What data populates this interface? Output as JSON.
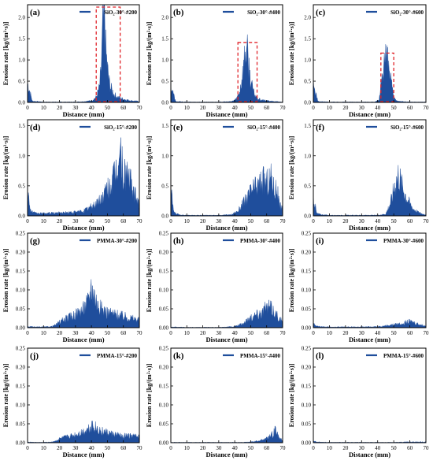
{
  "figure": {
    "xlabel": "Distance (mm)",
    "ylabel": "Erosion rate [kg/(m²·s)]",
    "series_color": "#1f4e9c",
    "highlight_color": "#e0242a"
  },
  "chart_data": [
    {
      "panel": "(a)",
      "type": "area",
      "series": [
        {
          "name": "SiO₂-30°-#200"
        }
      ],
      "xlim": [
        0,
        70
      ],
      "ylim": [
        0,
        2.3
      ],
      "xticks": [
        0,
        10,
        20,
        30,
        40,
        50,
        60,
        70
      ],
      "yticks": [
        "0.0",
        "0.5",
        "1.0",
        "1.5",
        "2.0"
      ],
      "ytick_values": [
        0,
        0.5,
        1.0,
        1.5,
        2.0
      ],
      "highlight": [
        43,
        58
      ],
      "x": [
        0,
        3,
        10,
        20,
        30,
        35,
        40,
        43,
        45,
        46,
        47,
        48,
        48.5,
        49,
        50,
        51,
        52,
        53,
        54,
        55,
        56,
        58,
        60,
        62,
        65,
        68,
        70
      ],
      "y": [
        0.45,
        0.03,
        0.01,
        0.01,
        0.01,
        0.02,
        0.04,
        0.12,
        0.35,
        0.7,
        1.6,
        2.2,
        1.8,
        1.2,
        0.8,
        0.5,
        0.35,
        0.28,
        0.2,
        0.16,
        0.13,
        0.1,
        0.08,
        0.06,
        0.04,
        0.03,
        0.02
      ]
    },
    {
      "panel": "(b)",
      "type": "area",
      "series": [
        {
          "name": "SiO₂-30°-#400"
        }
      ],
      "xlim": [
        0,
        70
      ],
      "ylim": [
        0,
        2.3
      ],
      "xticks": [
        0,
        10,
        20,
        30,
        40,
        50,
        60,
        70
      ],
      "yticks": [
        "0.0",
        "0.5",
        "1.0",
        "1.5",
        "2.0"
      ],
      "ytick_values": [
        0,
        0.5,
        1.0,
        1.5,
        2.0
      ],
      "highlight": [
        42,
        54
      ],
      "x": [
        0,
        3,
        10,
        20,
        30,
        38,
        41,
        43,
        44,
        45,
        46,
        47,
        48,
        49,
        50,
        51,
        52,
        54,
        56,
        60,
        65,
        70
      ],
      "y": [
        0.4,
        0.02,
        0.01,
        0.01,
        0.01,
        0.02,
        0.08,
        0.25,
        0.45,
        0.7,
        1.0,
        1.3,
        1.1,
        0.8,
        0.5,
        0.35,
        0.22,
        0.1,
        0.06,
        0.04,
        0.02,
        0.01
      ]
    },
    {
      "panel": "(c)",
      "type": "area",
      "series": [
        {
          "name": "SiO₂-30°-#600"
        }
      ],
      "xlim": [
        0,
        70
      ],
      "ylim": [
        0,
        2.3
      ],
      "xticks": [
        0,
        10,
        20,
        30,
        40,
        50,
        60,
        70
      ],
      "yticks": [
        "0.0",
        "0.5",
        "1.0",
        "1.5",
        "2.0"
      ],
      "ytick_values": [
        0,
        0.5,
        1.0,
        1.5,
        2.0
      ],
      "highlight": [
        42,
        50
      ],
      "x": [
        0,
        3,
        10,
        20,
        30,
        38,
        41,
        42,
        43,
        44,
        45,
        46,
        47,
        48,
        49,
        50,
        52,
        55,
        60,
        70
      ],
      "y": [
        0.4,
        0.02,
        0.01,
        0.01,
        0.01,
        0.01,
        0.05,
        0.4,
        0.8,
        1.0,
        1.05,
        0.95,
        0.8,
        0.6,
        0.3,
        0.1,
        0.04,
        0.02,
        0.01,
        0.01
      ]
    },
    {
      "panel": "(d)",
      "type": "area",
      "series": [
        {
          "name": "SiO₂-15°-#200"
        }
      ],
      "xlim": [
        0,
        70
      ],
      "ylim": [
        0,
        1.6
      ],
      "xticks": [
        0,
        10,
        20,
        30,
        40,
        50,
        60,
        70
      ],
      "yticks": [
        "0.0",
        "0.5",
        "1.0",
        "1.5"
      ],
      "ytick_values": [
        0,
        0.5,
        1.0,
        1.5
      ],
      "x": [
        0,
        2,
        5,
        10,
        20,
        30,
        35,
        40,
        45,
        48,
        50,
        53,
        55,
        57,
        58,
        59,
        60,
        61,
        62,
        64,
        66,
        68,
        70
      ],
      "y": [
        0.4,
        0.08,
        0.04,
        0.04,
        0.05,
        0.06,
        0.08,
        0.15,
        0.25,
        0.35,
        0.45,
        0.55,
        0.7,
        0.9,
        1.05,
        0.9,
        0.6,
        0.7,
        0.75,
        0.6,
        0.4,
        0.3,
        0.2
      ]
    },
    {
      "panel": "(e)",
      "type": "area",
      "series": [
        {
          "name": "SiO₂-15°-#400"
        }
      ],
      "xlim": [
        0,
        70
      ],
      "ylim": [
        0,
        1.6
      ],
      "xticks": [
        0,
        10,
        20,
        30,
        40,
        50,
        60,
        70
      ],
      "yticks": [
        "0.0",
        "0.5",
        "1.0",
        "1.5"
      ],
      "ytick_values": [
        0,
        0.5,
        1.0,
        1.5
      ],
      "x": [
        0,
        2,
        5,
        10,
        20,
        30,
        38,
        42,
        45,
        48,
        50,
        52,
        55,
        57,
        60,
        62,
        63,
        65,
        66,
        68,
        70
      ],
      "y": [
        0.4,
        0.05,
        0.02,
        0.01,
        0.01,
        0.01,
        0.02,
        0.08,
        0.2,
        0.3,
        0.4,
        0.45,
        0.5,
        0.6,
        0.55,
        0.6,
        0.65,
        0.4,
        0.5,
        0.2,
        0.1
      ]
    },
    {
      "panel": "(f)",
      "type": "area",
      "series": [
        {
          "name": "SiO₂-15°-#600"
        }
      ],
      "xlim": [
        0,
        70
      ],
      "ylim": [
        0,
        1.6
      ],
      "xticks": [
        0,
        10,
        20,
        30,
        40,
        50,
        60,
        70
      ],
      "yticks": [
        "0.0",
        "0.5",
        "1.0",
        "1.5"
      ],
      "ytick_values": [
        0,
        0.5,
        1.0,
        1.5
      ],
      "x": [
        0,
        2,
        5,
        10,
        20,
        30,
        40,
        45,
        47,
        49,
        50,
        51,
        52,
        53,
        54,
        55,
        56,
        58,
        60,
        62,
        65,
        68,
        70
      ],
      "y": [
        0.35,
        0.04,
        0.02,
        0.01,
        0.01,
        0.01,
        0.01,
        0.03,
        0.15,
        0.3,
        0.45,
        0.55,
        0.6,
        0.7,
        0.6,
        0.5,
        0.45,
        0.3,
        0.2,
        0.12,
        0.06,
        0.03,
        0.02
      ]
    },
    {
      "panel": "(g)",
      "type": "area",
      "series": [
        {
          "name": "PMMA-30°-#200"
        }
      ],
      "xlim": [
        0,
        70
      ],
      "ylim": [
        0,
        0.25
      ],
      "xticks": [
        0,
        10,
        20,
        30,
        40,
        50,
        60,
        70
      ],
      "yticks": [
        "0.00",
        "0.05",
        "0.10",
        "0.15",
        "0.20",
        "0.25"
      ],
      "ytick_values": [
        0,
        0.05,
        0.1,
        0.15,
        0.2,
        0.25
      ],
      "x": [
        0,
        5,
        10,
        15,
        18,
        20,
        25,
        30,
        35,
        38,
        40,
        42,
        44,
        46,
        48,
        50,
        55,
        60,
        65,
        70
      ],
      "y": [
        0.003,
        0.002,
        0.002,
        0.003,
        0.008,
        0.015,
        0.025,
        0.035,
        0.05,
        0.07,
        0.11,
        0.085,
        0.06,
        0.05,
        0.045,
        0.04,
        0.035,
        0.03,
        0.025,
        0.02
      ]
    },
    {
      "panel": "(h)",
      "type": "area",
      "series": [
        {
          "name": "PMMA-30°-#400"
        }
      ],
      "xlim": [
        0,
        70
      ],
      "ylim": [
        0,
        0.25
      ],
      "xticks": [
        0,
        10,
        20,
        30,
        40,
        50,
        60,
        70
      ],
      "yticks": [
        "0.00",
        "0.05",
        "0.10",
        "0.15",
        "0.20",
        "0.25"
      ],
      "ytick_values": [
        0,
        0.05,
        0.1,
        0.15,
        0.2,
        0.25
      ],
      "x": [
        0,
        10,
        20,
        30,
        40,
        45,
        48,
        50,
        52,
        55,
        58,
        60,
        62,
        64,
        66,
        68,
        70
      ],
      "y": [
        0.002,
        0.001,
        0.001,
        0.001,
        0.003,
        0.01,
        0.02,
        0.028,
        0.032,
        0.038,
        0.045,
        0.05,
        0.055,
        0.045,
        0.035,
        0.025,
        0.015
      ]
    },
    {
      "panel": "(i)",
      "type": "area",
      "series": [
        {
          "name": "PMMA-30°-#600"
        }
      ],
      "xlim": [
        0,
        70
      ],
      "ylim": [
        0,
        0.25
      ],
      "xticks": [
        0,
        10,
        20,
        30,
        40,
        50,
        60,
        70
      ],
      "yticks": [
        "0.00",
        "0.05",
        "0.10",
        "0.15",
        "0.20",
        "0.25"
      ],
      "ytick_values": [
        0,
        0.05,
        0.1,
        0.15,
        0.2,
        0.25
      ],
      "x": [
        0,
        1,
        3,
        10,
        20,
        30,
        40,
        45,
        50,
        55,
        58,
        60,
        62,
        65,
        68,
        70
      ],
      "y": [
        0.012,
        0.006,
        0.003,
        0.002,
        0.002,
        0.002,
        0.003,
        0.005,
        0.008,
        0.011,
        0.014,
        0.016,
        0.014,
        0.01,
        0.006,
        0.004
      ]
    },
    {
      "panel": "(j)",
      "type": "area",
      "series": [
        {
          "name": "PMMA-15°-#200"
        }
      ],
      "xlim": [
        0,
        70
      ],
      "ylim": [
        0,
        0.25
      ],
      "xticks": [
        0,
        10,
        20,
        30,
        40,
        50,
        60,
        70
      ],
      "yticks": [
        "0.00",
        "0.05",
        "0.10",
        "0.15",
        "0.20",
        "0.25"
      ],
      "ytick_values": [
        0,
        0.05,
        0.1,
        0.15,
        0.2,
        0.25
      ],
      "x": [
        0,
        5,
        10,
        15,
        18,
        20,
        25,
        30,
        35,
        38,
        40,
        42,
        45,
        50,
        55,
        60,
        65,
        70
      ],
      "y": [
        0.002,
        0.001,
        0.001,
        0.002,
        0.005,
        0.01,
        0.015,
        0.02,
        0.028,
        0.035,
        0.045,
        0.04,
        0.032,
        0.025,
        0.02,
        0.018,
        0.018,
        0.015
      ]
    },
    {
      "panel": "(k)",
      "type": "area",
      "series": [
        {
          "name": "PMMA-15°-#400"
        }
      ],
      "xlim": [
        0,
        70
      ],
      "ylim": [
        0,
        0.25
      ],
      "xticks": [
        0,
        10,
        20,
        30,
        40,
        50,
        60,
        70
      ],
      "yticks": [
        "0.00",
        "0.05",
        "0.10",
        "0.15",
        "0.20",
        "0.25"
      ],
      "ytick_values": [
        0,
        0.05,
        0.1,
        0.15,
        0.2,
        0.25
      ],
      "x": [
        0,
        10,
        20,
        30,
        40,
        45,
        50,
        52,
        55,
        58,
        60,
        62,
        63,
        64,
        65,
        66,
        67,
        68,
        70
      ],
      "y": [
        0.001,
        0.001,
        0.001,
        0.001,
        0.001,
        0.001,
        0.002,
        0.003,
        0.005,
        0.008,
        0.012,
        0.018,
        0.025,
        0.02,
        0.03,
        0.035,
        0.02,
        0.012,
        0.006
      ]
    },
    {
      "panel": "(l)",
      "type": "area",
      "series": [
        {
          "name": "PMMA-15°-#600"
        }
      ],
      "xlim": [
        0,
        70
      ],
      "ylim": [
        0,
        0.25
      ],
      "xticks": [
        0,
        10,
        20,
        30,
        40,
        50,
        60,
        70
      ],
      "yticks": [
        "0.00",
        "0.05",
        "0.10",
        "0.15",
        "0.20",
        "0.25"
      ],
      "ytick_values": [
        0,
        0.05,
        0.1,
        0.15,
        0.2,
        0.25
      ],
      "x": [
        0,
        1,
        3,
        10,
        20,
        30,
        40,
        50,
        60,
        70
      ],
      "y": [
        0.006,
        0.003,
        0.002,
        0.001,
        0.001,
        0.001,
        0.001,
        0.001,
        0.002,
        0.002
      ]
    }
  ]
}
